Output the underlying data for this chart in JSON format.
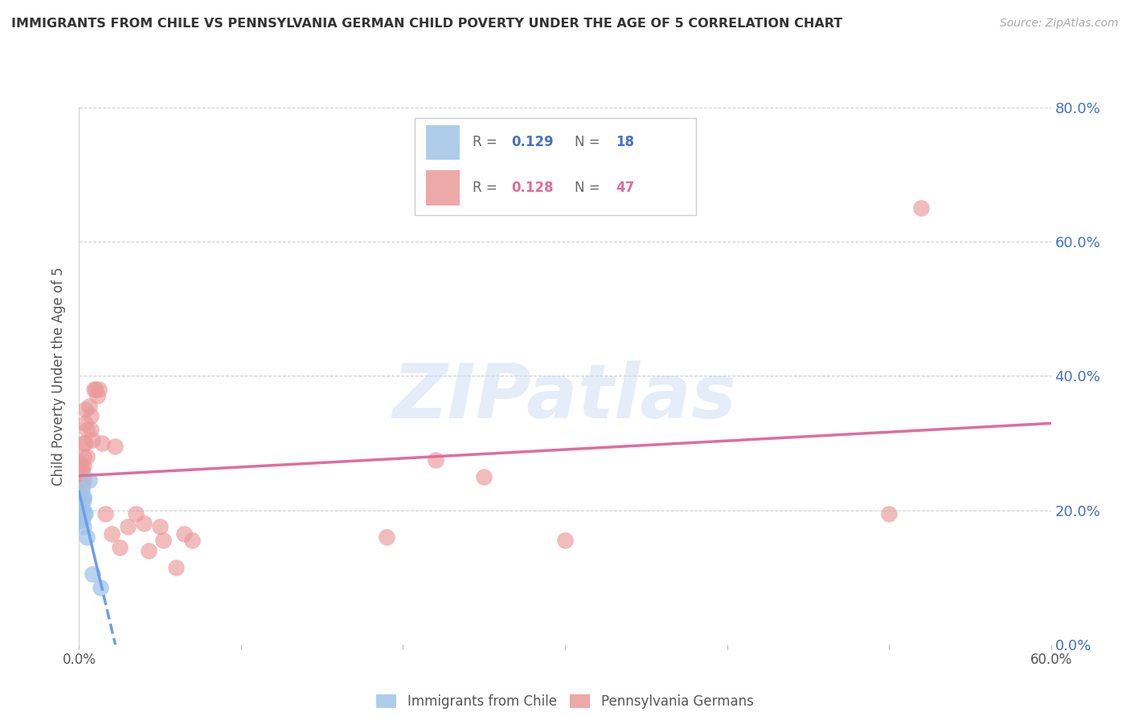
{
  "title": "IMMIGRANTS FROM CHILE VS PENNSYLVANIA GERMAN CHILD POVERTY UNDER THE AGE OF 5 CORRELATION CHART",
  "source": "Source: ZipAtlas.com",
  "ylabel": "Child Poverty Under the Age of 5",
  "xlim": [
    0.0,
    0.6
  ],
  "ylim": [
    0.0,
    0.8
  ],
  "yticks_right": [
    0.0,
    0.2,
    0.4,
    0.6,
    0.8
  ],
  "ytick_labels_right": [
    "0.0%",
    "20.0%",
    "40.0%",
    "60.0%",
    "80.0%"
  ],
  "xticks": [
    0.0,
    0.1,
    0.2,
    0.3,
    0.4,
    0.5,
    0.6
  ],
  "xtick_labels": [
    "0.0%",
    "",
    "",
    "",
    "",
    "",
    "60.0%"
  ],
  "legend_label1": "Immigrants from Chile",
  "legend_label2": "Pennsylvania Germans",
  "blue_color": "#9fc5e8",
  "pink_color": "#ea9999",
  "blue_line_color": "#6d9eeb",
  "pink_line_color": "#e06c9e",
  "watermark": "ZIPatlas",
  "r1": "0.129",
  "n1": "18",
  "r2": "0.128",
  "n2": "47",
  "chile_x": [
    0.0005,
    0.001,
    0.001,
    0.0015,
    0.002,
    0.002,
    0.002,
    0.002,
    0.003,
    0.003,
    0.003,
    0.003,
    0.003,
    0.004,
    0.005,
    0.006,
    0.008,
    0.013
  ],
  "chile_y": [
    0.2,
    0.22,
    0.195,
    0.215,
    0.23,
    0.22,
    0.19,
    0.185,
    0.22,
    0.215,
    0.2,
    0.195,
    0.175,
    0.195,
    0.16,
    0.245,
    0.105,
    0.085
  ],
  "pagerman_x": [
    0.0005,
    0.001,
    0.001,
    0.001,
    0.0015,
    0.002,
    0.002,
    0.002,
    0.002,
    0.002,
    0.003,
    0.003,
    0.003,
    0.003,
    0.004,
    0.004,
    0.004,
    0.005,
    0.005,
    0.006,
    0.007,
    0.007,
    0.008,
    0.009,
    0.01,
    0.011,
    0.012,
    0.014,
    0.016,
    0.02,
    0.022,
    0.025,
    0.03,
    0.035,
    0.04,
    0.043,
    0.05,
    0.052,
    0.06,
    0.065,
    0.07,
    0.19,
    0.22,
    0.25,
    0.3,
    0.5,
    0.52
  ],
  "pagerman_y": [
    0.265,
    0.27,
    0.245,
    0.22,
    0.26,
    0.26,
    0.25,
    0.235,
    0.22,
    0.185,
    0.3,
    0.28,
    0.265,
    0.245,
    0.35,
    0.33,
    0.3,
    0.32,
    0.28,
    0.355,
    0.34,
    0.32,
    0.305,
    0.38,
    0.38,
    0.37,
    0.38,
    0.3,
    0.195,
    0.165,
    0.295,
    0.145,
    0.175,
    0.195,
    0.18,
    0.14,
    0.175,
    0.155,
    0.115,
    0.165,
    0.155,
    0.16,
    0.275,
    0.25,
    0.155,
    0.195,
    0.65
  ]
}
